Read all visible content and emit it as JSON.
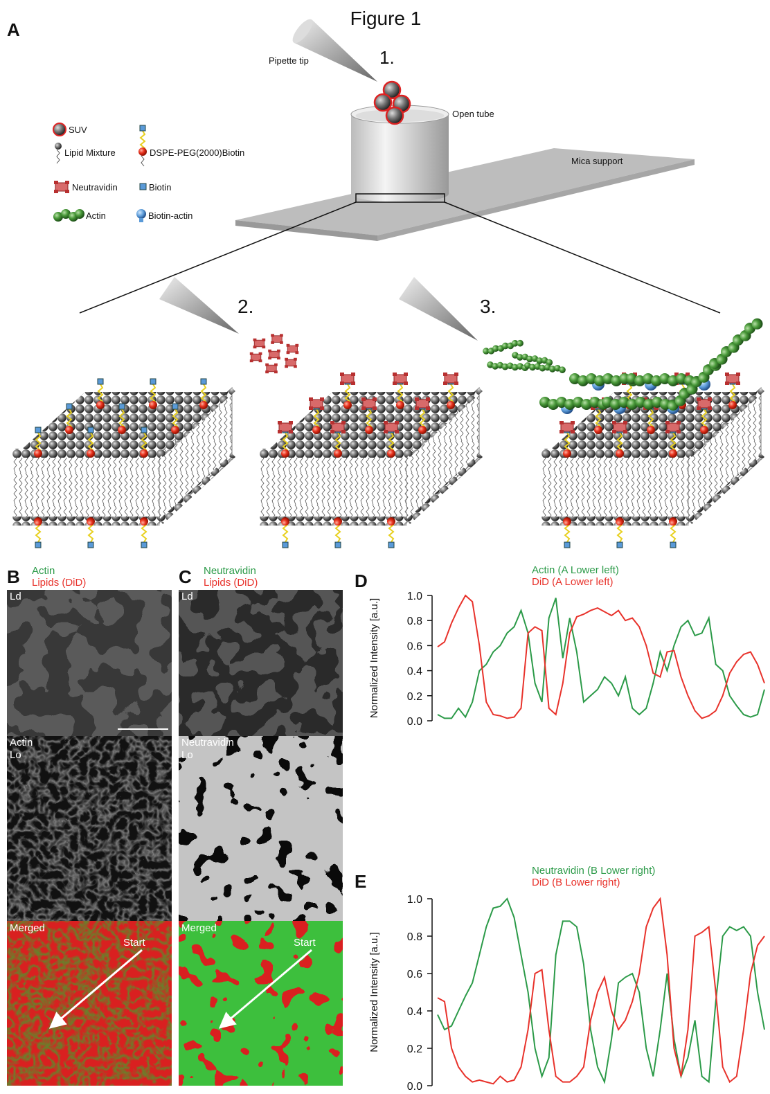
{
  "title": "Figure 1",
  "panel_a": {
    "letter": "A",
    "pipette_tip": "Pipette tip",
    "step1": "1.",
    "open_tube": "Open tube",
    "mica_support": "Mica support",
    "step2": "2.",
    "step3": "3.",
    "legend": {
      "suv": "SUV",
      "lipid_mixture": "Lipid Mixture",
      "dspe": "DSPE-PEG(2000)Biotin",
      "neutravidin": "Neutravidin",
      "biotin": "Biotin",
      "actin": "Actin",
      "biotin_actin": "Biotin-actin"
    }
  },
  "panel_b": {
    "letter": "B",
    "channel1": "Actin",
    "channel2": "Lipids (DiD)",
    "ld": "Ld",
    "protein": "Actin",
    "lo": "Lo",
    "merged": "Merged",
    "start": "Start"
  },
  "panel_c": {
    "letter": "C",
    "channel1": "Neutravidin",
    "channel2": "Lipids (DiD)",
    "ld": "Ld",
    "protein": "Neutravidin",
    "lo": "Lo",
    "merged": "Merged",
    "start": "Start"
  },
  "chart_data": [
    {
      "type": "line",
      "panel": "D",
      "ylabel": "Normalized Intensity [a.u.]",
      "ylim": [
        0,
        1
      ],
      "yticks": [
        {
          "value": 0,
          "label": "0.0"
        },
        0.2,
        0.4,
        0.6,
        0.8,
        {
          "value": 1,
          "label": "1.0"
        }
      ],
      "series": [
        {
          "name": "Actin (A Lower left)",
          "color": "#2b9a48",
          "values": [
            0.05,
            0.02,
            0.02,
            0.1,
            0.03,
            0.15,
            0.4,
            0.45,
            0.55,
            0.6,
            0.7,
            0.75,
            0.88,
            0.7,
            0.3,
            0.15,
            0.82,
            0.98,
            0.5,
            0.82,
            0.55,
            0.15,
            0.2,
            0.25,
            0.35,
            0.3,
            0.2,
            0.35,
            0.1,
            0.05,
            0.1,
            0.3,
            0.55,
            0.4,
            0.6,
            0.75,
            0.8,
            0.68,
            0.7,
            0.82,
            0.45,
            0.4,
            0.2,
            0.12,
            0.05,
            0.03,
            0.05,
            0.25
          ]
        },
        {
          "name": "DiD (A Lower left)",
          "color": "#e8322b",
          "values": [
            0.59,
            0.63,
            0.78,
            0.9,
            1.0,
            0.95,
            0.6,
            0.15,
            0.05,
            0.04,
            0.02,
            0.03,
            0.1,
            0.7,
            0.75,
            0.72,
            0.1,
            0.05,
            0.3,
            0.7,
            0.83,
            0.85,
            0.88,
            0.9,
            0.87,
            0.84,
            0.88,
            0.8,
            0.82,
            0.75,
            0.6,
            0.38,
            0.35,
            0.55,
            0.56,
            0.35,
            0.2,
            0.08,
            0.02,
            0.04,
            0.08,
            0.2,
            0.38,
            0.47,
            0.53,
            0.55,
            0.45,
            0.3
          ]
        }
      ]
    },
    {
      "type": "line",
      "panel": "E",
      "ylabel": "Normalized Intensity [a.u.]",
      "ylim": [
        0,
        1
      ],
      "yticks": [
        {
          "value": 0,
          "label": "0.0"
        },
        0.2,
        0.4,
        0.6,
        0.8,
        {
          "value": 1,
          "label": "1.0"
        }
      ],
      "series": [
        {
          "name": "Neutravidin (B Lower right)",
          "color": "#2b9a48",
          "values": [
            0.38,
            0.3,
            0.32,
            0.4,
            0.48,
            0.55,
            0.7,
            0.85,
            0.95,
            0.96,
            1.0,
            0.9,
            0.7,
            0.5,
            0.2,
            0.05,
            0.15,
            0.7,
            0.88,
            0.88,
            0.85,
            0.65,
            0.3,
            0.1,
            0.02,
            0.25,
            0.55,
            0.58,
            0.6,
            0.5,
            0.2,
            0.05,
            0.3,
            0.6,
            0.25,
            0.05,
            0.15,
            0.35,
            0.05,
            0.02,
            0.45,
            0.8,
            0.85,
            0.83,
            0.85,
            0.8,
            0.5,
            0.3
          ]
        },
        {
          "name": "DiD (B Lower right)",
          "color": "#e8322b",
          "values": [
            0.47,
            0.45,
            0.2,
            0.1,
            0.05,
            0.02,
            0.03,
            0.02,
            0.01,
            0.05,
            0.02,
            0.03,
            0.1,
            0.3,
            0.6,
            0.62,
            0.3,
            0.05,
            0.02,
            0.02,
            0.05,
            0.1,
            0.35,
            0.5,
            0.58,
            0.4,
            0.3,
            0.35,
            0.45,
            0.6,
            0.85,
            0.95,
            1.0,
            0.7,
            0.2,
            0.05,
            0.3,
            0.8,
            0.82,
            0.85,
            0.5,
            0.1,
            0.02,
            0.05,
            0.3,
            0.6,
            0.75,
            0.8
          ]
        }
      ]
    }
  ]
}
